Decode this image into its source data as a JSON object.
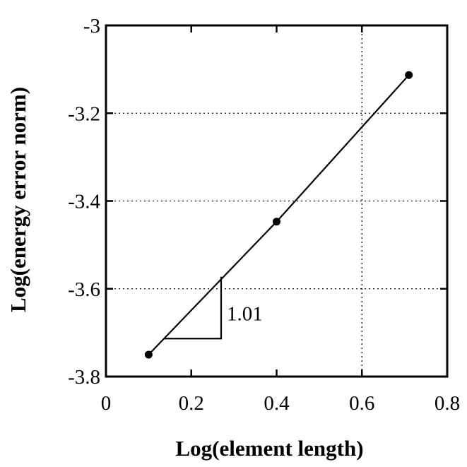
{
  "chart_data": {
    "type": "line",
    "xlabel": "Log(element length)",
    "ylabel": "Log(energy error norm)",
    "xlim": [
      0,
      0.8
    ],
    "ylim": [
      -3.8,
      -3.0
    ],
    "x_ticks": [
      "0",
      "0.2",
      "0.4",
      "0.6",
      "0.8"
    ],
    "y_ticks": [
      "-3",
      "-3.2",
      "-3.4",
      "-3.6",
      "-3.8"
    ],
    "grid": "dotted, every other tick",
    "series": [
      {
        "x": [
          0.1,
          0.4,
          0.71
        ],
        "y": [
          -3.75,
          -3.447,
          -3.113
        ],
        "marker": "circle",
        "color": "#000000"
      }
    ],
    "annotations": [
      {
        "text": "1.01",
        "type": "slope-triangle",
        "x0": 0.135,
        "x1": 0.27
      }
    ]
  }
}
